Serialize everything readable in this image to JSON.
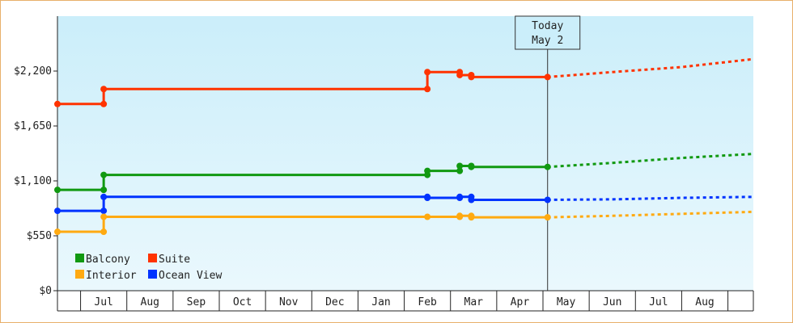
{
  "chart_data": {
    "type": "line",
    "y_ticks": [
      "$0",
      "$550",
      "$1,100",
      "$1,650",
      "$2,200"
    ],
    "ylim": [
      0,
      2750
    ],
    "x_labels": [
      "Jul",
      "Aug",
      "Sep",
      "Oct",
      "Nov",
      "Dec",
      "Jan",
      "Feb",
      "Mar",
      "Apr",
      "May",
      "Jun",
      "Jul",
      "Aug"
    ],
    "x_range": [
      0,
      15.05
    ],
    "today_marker": {
      "line1": "Today",
      "line2": "May 2",
      "x": 10.6
    },
    "grid": false,
    "legend_position": "bottom-left",
    "series": [
      {
        "name": "Suite",
        "color": "#ff3300",
        "points": [
          [
            0,
            1870
          ],
          [
            1,
            1870
          ],
          [
            1,
            2020
          ],
          [
            8,
            2020
          ],
          [
            8,
            2190
          ],
          [
            8.7,
            2190
          ],
          [
            8.7,
            2160
          ],
          [
            8.95,
            2160
          ],
          [
            8.95,
            2140
          ],
          [
            10.6,
            2140
          ]
        ],
        "markers": [
          [
            0,
            1870
          ],
          [
            1,
            1870
          ],
          [
            1,
            2020
          ],
          [
            8,
            2020
          ],
          [
            8,
            2190
          ],
          [
            8.7,
            2190
          ],
          [
            8.7,
            2160
          ],
          [
            8.95,
            2160
          ],
          [
            8.95,
            2140
          ],
          [
            10.6,
            2140
          ]
        ],
        "forecast": [
          [
            10.6,
            2140
          ],
          [
            12,
            2190
          ],
          [
            13.5,
            2240
          ],
          [
            15.05,
            2320
          ]
        ]
      },
      {
        "name": "Balcony",
        "color": "#119911",
        "points": [
          [
            0,
            1010
          ],
          [
            1,
            1010
          ],
          [
            1,
            1160
          ],
          [
            8,
            1160
          ],
          [
            8,
            1200
          ],
          [
            8.7,
            1200
          ],
          [
            8.7,
            1250
          ],
          [
            8.95,
            1250
          ],
          [
            8.95,
            1240
          ],
          [
            10.6,
            1240
          ]
        ],
        "markers": [
          [
            0,
            1010
          ],
          [
            1,
            1010
          ],
          [
            1,
            1160
          ],
          [
            8,
            1160
          ],
          [
            8,
            1200
          ],
          [
            8.7,
            1200
          ],
          [
            8.7,
            1250
          ],
          [
            8.95,
            1250
          ],
          [
            8.95,
            1240
          ],
          [
            10.6,
            1240
          ]
        ],
        "forecast": [
          [
            10.6,
            1240
          ],
          [
            12,
            1280
          ],
          [
            13.5,
            1330
          ],
          [
            15.05,
            1370
          ]
        ]
      },
      {
        "name": "Ocean View",
        "color": "#0033ff",
        "points": [
          [
            0,
            800
          ],
          [
            1,
            800
          ],
          [
            1,
            940
          ],
          [
            8,
            940
          ],
          [
            8,
            930
          ],
          [
            8.7,
            930
          ],
          [
            8.7,
            940
          ],
          [
            8.95,
            940
          ],
          [
            8.95,
            910
          ],
          [
            10.6,
            910
          ]
        ],
        "markers": [
          [
            0,
            800
          ],
          [
            1,
            800
          ],
          [
            1,
            940
          ],
          [
            8,
            940
          ],
          [
            8,
            930
          ],
          [
            8.7,
            930
          ],
          [
            8.7,
            940
          ],
          [
            8.95,
            940
          ],
          [
            8.95,
            910
          ],
          [
            10.6,
            910
          ]
        ],
        "forecast": [
          [
            10.6,
            910
          ],
          [
            12,
            915
          ],
          [
            13.5,
            930
          ],
          [
            15.05,
            940
          ]
        ]
      },
      {
        "name": "Interior",
        "color": "#ffaa11",
        "points": [
          [
            0,
            590
          ],
          [
            1,
            590
          ],
          [
            1,
            740
          ],
          [
            8,
            740
          ],
          [
            8,
            740
          ],
          [
            8.7,
            740
          ],
          [
            8.7,
            750
          ],
          [
            8.95,
            750
          ],
          [
            8.95,
            735
          ],
          [
            10.6,
            735
          ]
        ],
        "markers": [
          [
            0,
            590
          ],
          [
            1,
            590
          ],
          [
            1,
            740
          ],
          [
            8,
            740
          ],
          [
            8.7,
            740
          ],
          [
            8.7,
            750
          ],
          [
            8.95,
            750
          ],
          [
            8.95,
            735
          ],
          [
            10.6,
            735
          ]
        ],
        "forecast": [
          [
            10.6,
            735
          ],
          [
            12,
            750
          ],
          [
            13.5,
            770
          ],
          [
            15.05,
            790
          ]
        ]
      }
    ],
    "legend": [
      {
        "label": "Balcony",
        "color": "#119911"
      },
      {
        "label": "Suite",
        "color": "#ff3300"
      },
      {
        "label": "Interior",
        "color": "#ffaa11"
      },
      {
        "label": "Ocean View",
        "color": "#0033ff"
      }
    ]
  }
}
